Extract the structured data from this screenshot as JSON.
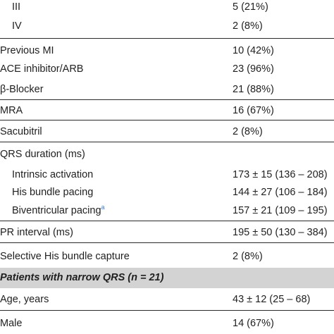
{
  "rows": [
    {
      "label": "III",
      "value": "5 (21%)"
    },
    {
      "label": "IV",
      "value": "2 (8%)"
    },
    {
      "label": "Previous MI",
      "value": "10 (42%)"
    },
    {
      "label": "ACE inhibitor/ARB",
      "value": "23 (96%)"
    },
    {
      "label": "β-Blocker",
      "value": "21 (88%)"
    },
    {
      "label": "MRA",
      "value": "16 (67%)"
    },
    {
      "label": "Sacubitril",
      "value": "2 (8%)"
    },
    {
      "label": "QRS duration (ms)",
      "value": ""
    },
    {
      "label": "Intrinsic activation",
      "value": "173 ± 15 (136 – 208)"
    },
    {
      "label": "His bundle pacing",
      "value": "144 ± 27 (106 – 184)"
    },
    {
      "label": "Biventricular pacing",
      "footnote": "a",
      "value": "157 ± 21 (109 – 195)"
    },
    {
      "label": "PR interval (ms)",
      "value": "195 ± 50 (130 – 384)"
    },
    {
      "label": "Selective His bundle capture",
      "value": "2 (8%)"
    },
    {
      "label": "Age, years",
      "value": "43 ± 12 (25 – 68)"
    },
    {
      "label": "Male",
      "value": "14 (67%)"
    }
  ],
  "section": {
    "label": "Patients with narrow QRS (n = 21)"
  },
  "colors": {
    "section_bg": "#d3d3d3",
    "rule": "#2a2a2a",
    "footnote": "#4a78c2"
  }
}
